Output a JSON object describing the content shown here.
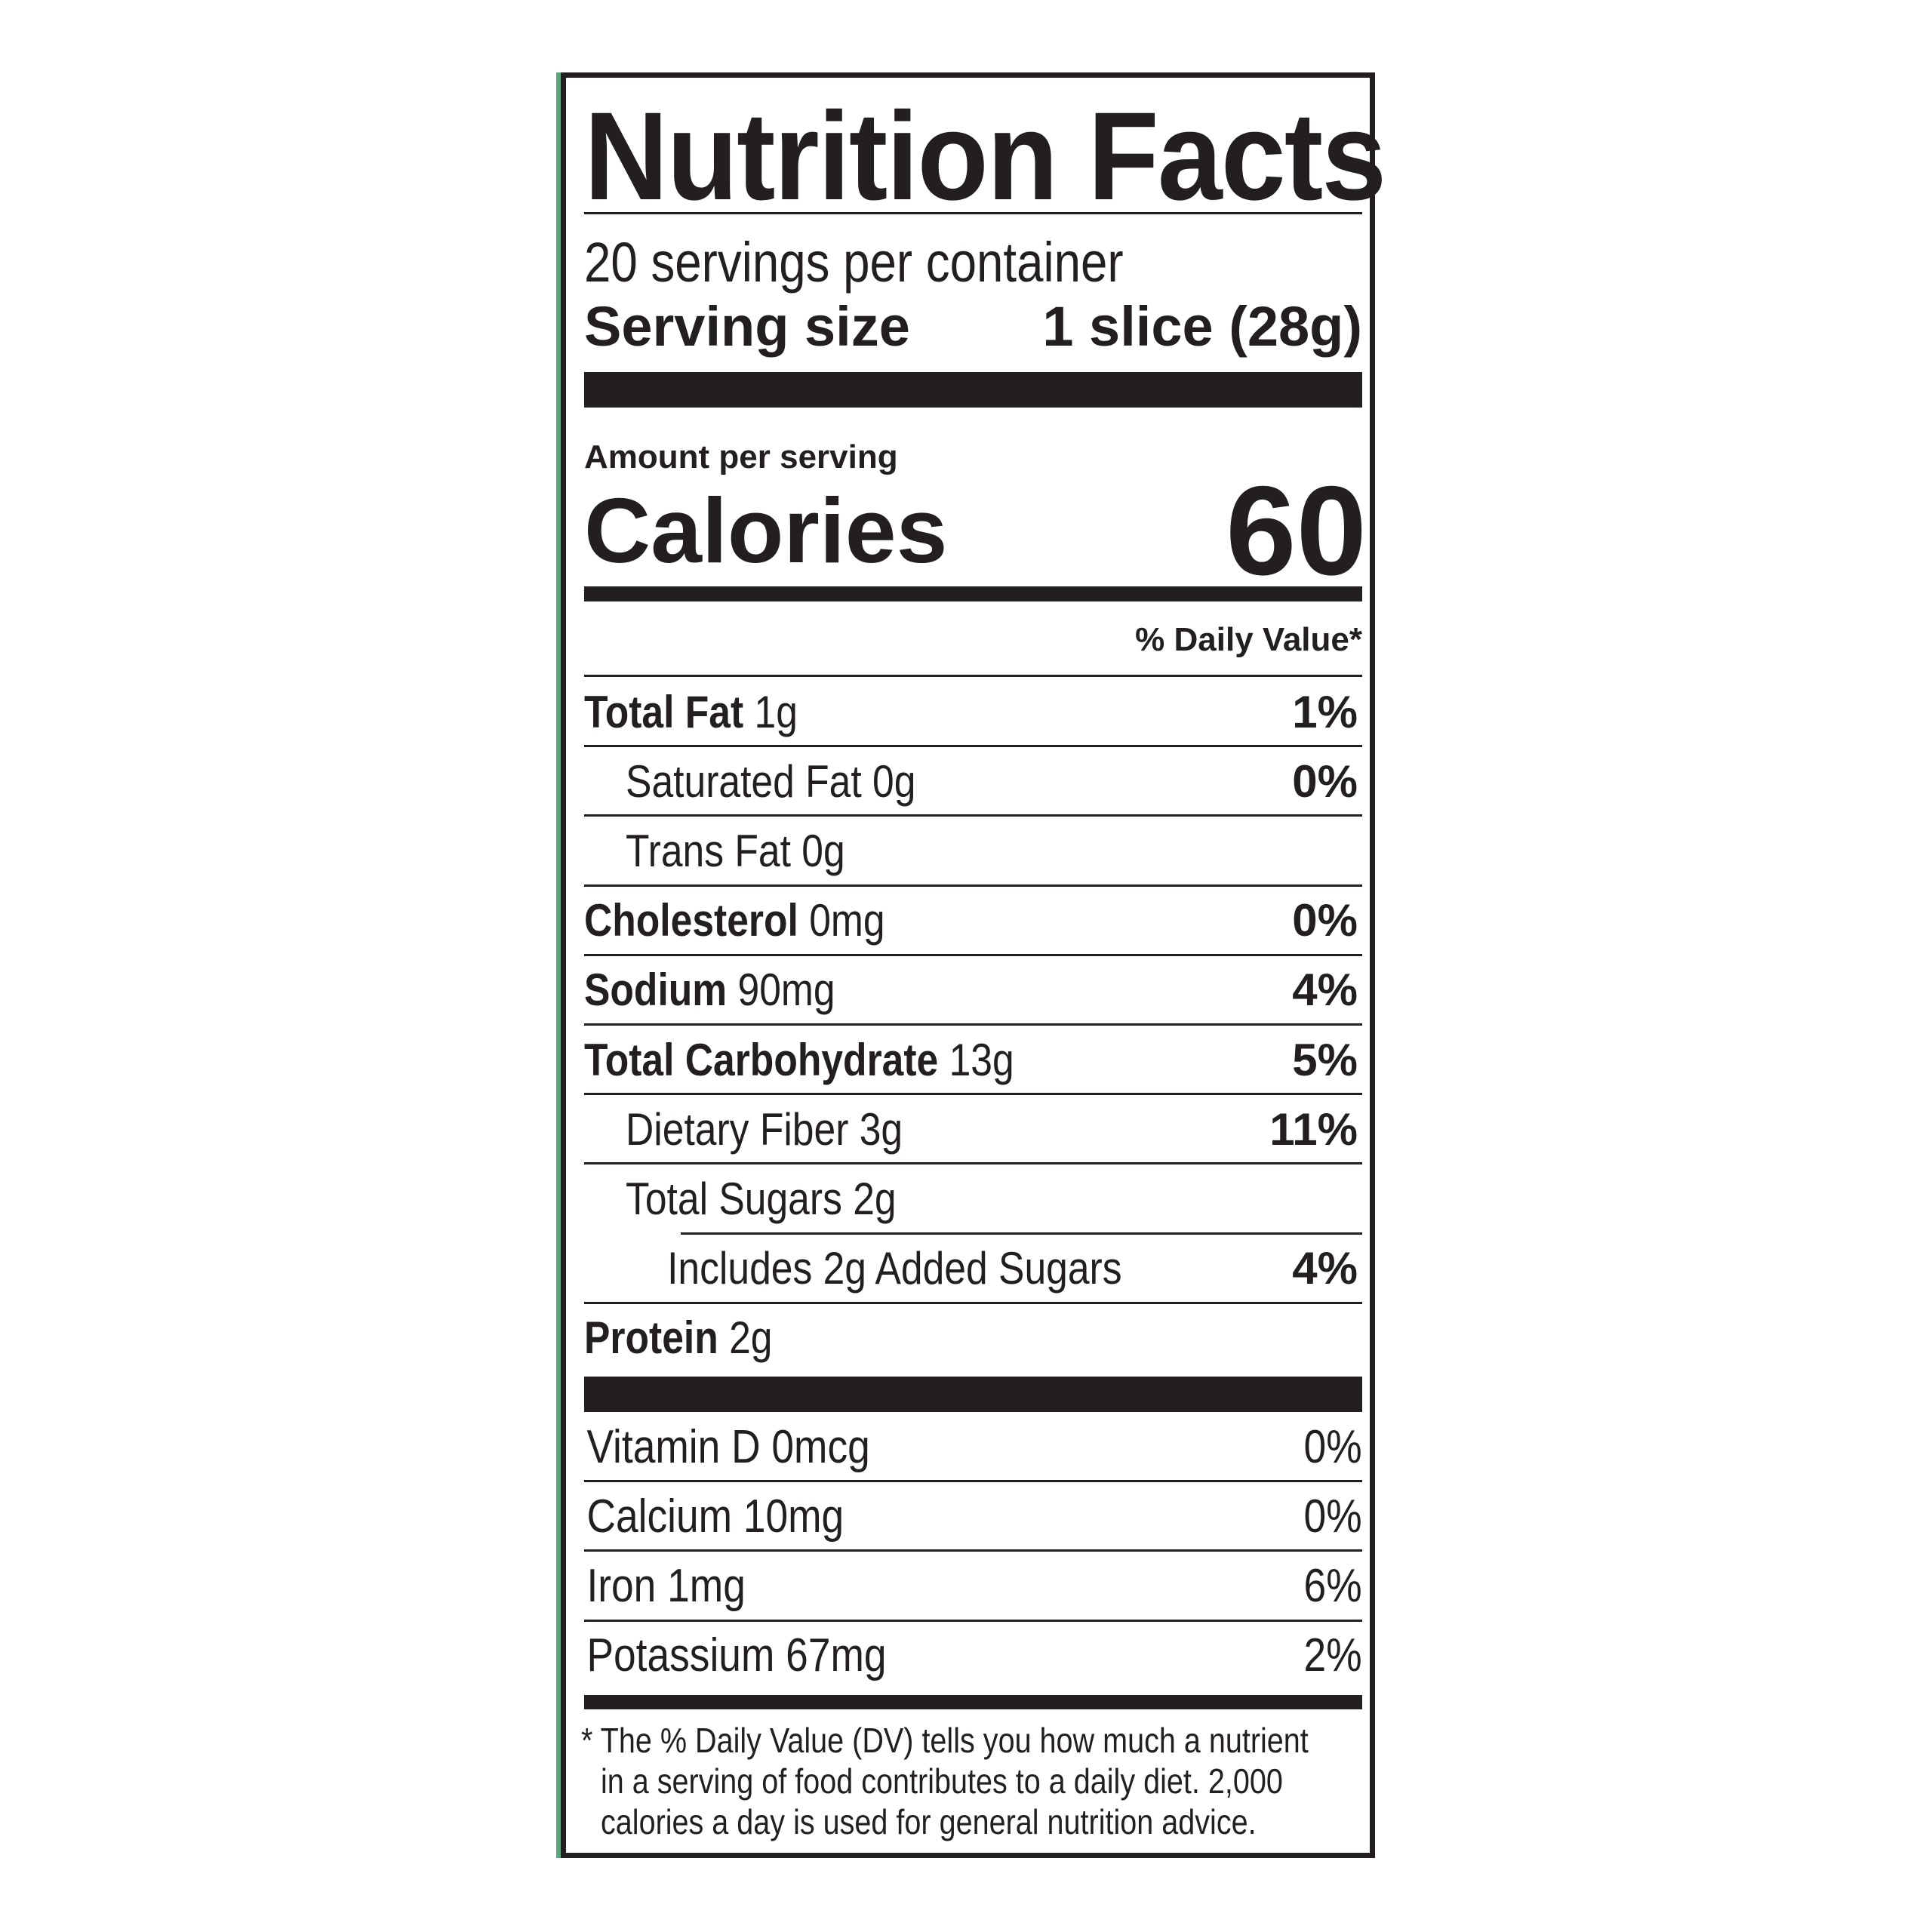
{
  "title": "Nutrition Facts",
  "servings_per_container": "20 servings per container",
  "serving_size": {
    "label": "Serving size",
    "value": "1 slice (28g)"
  },
  "amount_per_serving": "Amount per serving",
  "calories": {
    "label": "Calories",
    "value": "60"
  },
  "daily_value_header": "% Daily Value*",
  "nutrients": [
    {
      "name": "Total Fat",
      "amount": "1g",
      "dv": "1%"
    },
    {
      "name": "Saturated Fat 0g",
      "amount": "",
      "dv": "0%"
    },
    {
      "name": "Trans Fat 0g",
      "amount": "",
      "dv": ""
    },
    {
      "name": "Cholesterol",
      "amount": "0mg",
      "dv": "0%"
    },
    {
      "name": "Sodium",
      "amount": "90mg",
      "dv": "4%"
    },
    {
      "name": "Total Carbohydrate",
      "amount": "13g",
      "dv": "5%"
    },
    {
      "name": "Dietary Fiber 3g",
      "amount": "",
      "dv": "11%"
    },
    {
      "name": "Total Sugars 2g",
      "amount": "",
      "dv": ""
    },
    {
      "name": "Includes 2g Added Sugars",
      "amount": "",
      "dv": "4%"
    },
    {
      "name": "Protein",
      "amount": "2g",
      "dv": ""
    }
  ],
  "vitamins": [
    {
      "name": "Vitamin D 0mcg",
      "dv": "0%"
    },
    {
      "name": "Calcium 10mg",
      "dv": "0%"
    },
    {
      "name": "Iron 1mg",
      "dv": "6%"
    },
    {
      "name": "Potassium 67mg",
      "dv": "2%"
    }
  ],
  "footnote": [
    "* The % Daily Value (DV) tells you how much a nutrient",
    "in a serving of food contributes to a daily diet. 2,000",
    "calories a day is used for general nutrition advice."
  ],
  "colors": {
    "ink": "#231f20",
    "edge": "#5aa57e"
  }
}
